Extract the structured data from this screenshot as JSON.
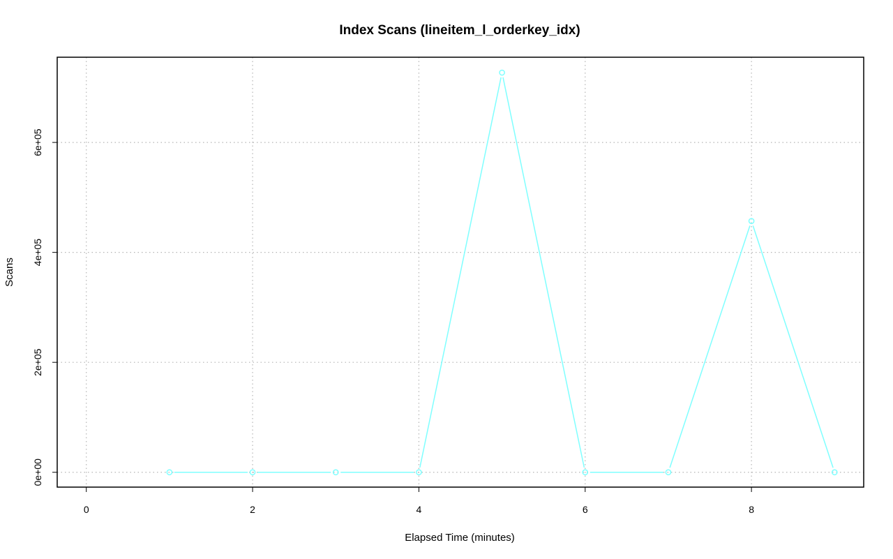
{
  "chart_data": {
    "type": "line",
    "title": "Index Scans (lineitem_l_orderkey_idx)",
    "xlabel": "Elapsed Time (minutes)",
    "ylabel": "Scans",
    "xlim": [
      -0.35,
      9.35
    ],
    "ylim": [
      -27000,
      755000
    ],
    "x_ticks": [
      0,
      2,
      4,
      6,
      8
    ],
    "x_tick_labels": [
      "0",
      "2",
      "4",
      "6",
      "8"
    ],
    "y_ticks": [
      0,
      200000,
      400000,
      600000
    ],
    "y_tick_labels": [
      "0e+00",
      "2e+05",
      "4e+05",
      "6e+05"
    ],
    "grid": true,
    "series": [
      {
        "color": "#7fffff",
        "marker": "circle",
        "x": [
          1,
          2,
          3,
          4,
          5,
          6,
          7,
          8,
          9
        ],
        "y": [
          0,
          0,
          0,
          0,
          727000,
          0,
          0,
          457000,
          0
        ]
      }
    ]
  }
}
